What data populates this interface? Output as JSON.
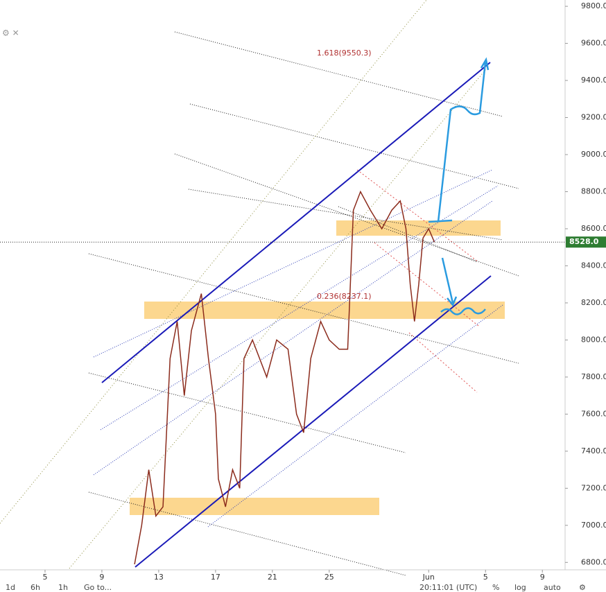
{
  "chart_data": {
    "type": "line",
    "x": [
      11.3,
      11.8,
      12.3,
      12.8,
      13.3,
      13.8,
      14.3,
      14.8,
      15.3,
      16.0,
      16.5,
      17.0,
      17.2,
      17.7,
      18.2,
      18.7,
      19.0,
      19.6,
      20.1,
      20.6,
      21.3,
      22.1,
      22.7,
      23.2,
      23.7,
      24.4,
      25.0,
      25.7,
      26.3,
      26.7,
      27.2,
      27.9,
      28.7,
      29.4,
      30.0,
      30.4,
      30.7,
      31.0,
      31.3,
      31.6,
      32.0,
      32.4
    ],
    "series": [
      {
        "color": "#8b2b1c",
        "values": [
          6790,
          7000,
          7300,
          7050,
          7100,
          7900,
          8100,
          7700,
          8050,
          8250,
          7900,
          7600,
          7250,
          7100,
          7300,
          7200,
          7900,
          8000,
          7900,
          7800,
          8000,
          7950,
          7600,
          7500,
          7900,
          8100,
          8000,
          7950,
          7950,
          8700,
          8800,
          8700,
          8600,
          8700,
          8750,
          8600,
          8300,
          8100,
          8300,
          8550,
          8600,
          8528
        ]
      }
    ],
    "xlim": [
      1.83,
      41.6
    ],
    "xticks": [
      5,
      9,
      13,
      17,
      21,
      25,
      {
        "value": 32,
        "label": "Jun"
      },
      {
        "value": 36,
        "label": "5"
      },
      {
        "value": 40,
        "label": "9"
      }
    ],
    "ylim": [
      6760,
      9834
    ],
    "yticks": [
      {
        "value": 6800,
        "label": "6800.0"
      },
      {
        "value": 7000,
        "label": "7000.0"
      },
      {
        "value": 7200,
        "label": "7200.0"
      },
      {
        "value": 7400,
        "label": "7400.0"
      },
      {
        "value": 7600,
        "label": "7600.0"
      },
      {
        "value": 7800,
        "label": "7800.0"
      },
      {
        "value": 8000,
        "label": "8000.0"
      },
      {
        "value": 8200,
        "label": "8200.0"
      },
      {
        "value": 8400,
        "label": "8400.0"
      },
      {
        "value": 8600,
        "label": "8600.0"
      },
      {
        "value": 8800,
        "label": "8800.0"
      },
      {
        "value": 9000,
        "label": "9000.0"
      },
      {
        "value": 9200,
        "label": "9200.0"
      },
      {
        "value": 9400,
        "label": "9400.0"
      },
      {
        "value": 9600,
        "label": "9600.0"
      },
      {
        "value": 9800,
        "label": "9800.0"
      }
    ],
    "last_price": {
      "value": 8528,
      "label": "8528.0"
    },
    "annotations": [
      "1.618(9550.3)",
      "0.236(8237.1)"
    ]
  },
  "toolbar": {
    "intervals": [
      "1d",
      "6h",
      "1h"
    ],
    "goto": "Go to...",
    "clock": "20:11:01 (UTC)",
    "options": [
      "%",
      "log",
      "auto"
    ]
  }
}
